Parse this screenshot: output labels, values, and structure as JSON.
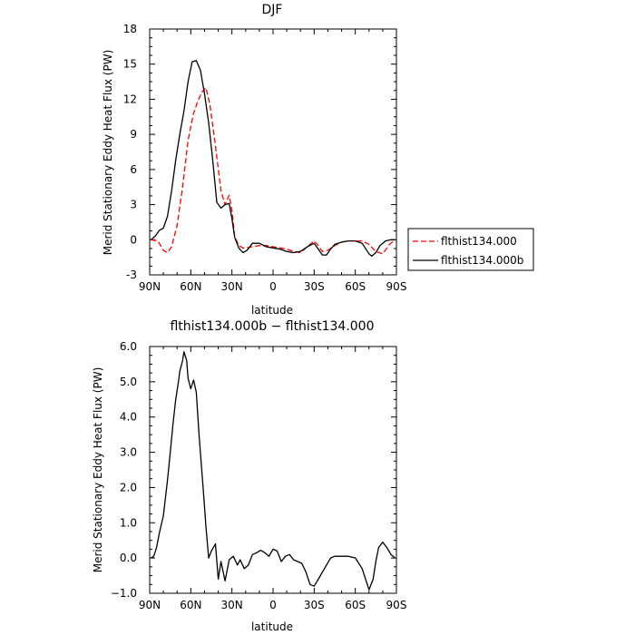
{
  "chart_data": [
    {
      "type": "line",
      "title": "DJF",
      "xlabel": "latitude",
      "ylabel": "Merid Stationary Eddy Heat Flux (PW)",
      "xlim": [
        90,
        -90
      ],
      "ylim": [
        -3,
        18
      ],
      "x_ticks": [
        90,
        60,
        30,
        0,
        -30,
        -60,
        -90
      ],
      "x_tick_labels": [
        "90N",
        "60N",
        "30N",
        "0",
        "30S",
        "60S",
        "90S"
      ],
      "y_ticks": [
        -3,
        0,
        3,
        6,
        9,
        12,
        15,
        18
      ],
      "y_tick_labels": [
        "-3",
        "0",
        "3",
        "6",
        "9",
        "12",
        "15",
        "18"
      ],
      "legend_position": "right",
      "series": [
        {
          "name": "flthist134.000",
          "color": "#ff0000",
          "dash": "dashed",
          "x": [
            89,
            84,
            80,
            77,
            74,
            70,
            66,
            62,
            58,
            55,
            52,
            49,
            46,
            42,
            38,
            35,
            32,
            30,
            28,
            25,
            22,
            20,
            15,
            10,
            5,
            0,
            -5,
            -10,
            -15,
            -20,
            -25,
            -30,
            -33,
            -36,
            -40,
            -45,
            -50,
            -55,
            -60,
            -65,
            -70,
            -75,
            -80,
            -85,
            -89
          ],
          "values": [
            0,
            -0.1,
            -0.9,
            -1.1,
            -0.6,
            1.2,
            4.5,
            8.5,
            10.8,
            11.8,
            12.6,
            13.0,
            11.5,
            8.0,
            4.2,
            3.0,
            3.8,
            2.5,
            0.3,
            -0.5,
            -0.7,
            -0.7,
            -0.6,
            -0.5,
            -0.5,
            -0.6,
            -0.7,
            -0.8,
            -1.0,
            -1.1,
            -0.6,
            -0.1,
            -0.5,
            -1.0,
            -0.9,
            -0.5,
            -0.2,
            -0.1,
            -0.1,
            -0.1,
            -0.4,
            -1.0,
            -1.2,
            -0.4,
            0
          ]
        },
        {
          "name": "flthist134.000b",
          "color": "#000000",
          "dash": "solid",
          "x": [
            89,
            86,
            83,
            80,
            77,
            74,
            71,
            68,
            65,
            62,
            59,
            56,
            53,
            50,
            47,
            44,
            41,
            38,
            35,
            32,
            30,
            28,
            25,
            22,
            19,
            15,
            10,
            5,
            0,
            -5,
            -10,
            -15,
            -20,
            -25,
            -30,
            -33,
            -36,
            -39,
            -42,
            -45,
            -50,
            -55,
            -60,
            -65,
            -70,
            -72,
            -75,
            -78,
            -82,
            -86,
            -89
          ],
          "values": [
            0,
            0.3,
            0.8,
            1.0,
            2.0,
            4.2,
            6.8,
            9.0,
            11.0,
            13.5,
            15.2,
            15.3,
            14.5,
            12.5,
            10.0,
            6.8,
            3.2,
            2.7,
            3.0,
            3.1,
            1.8,
            0.2,
            -0.7,
            -1.1,
            -0.9,
            -0.3,
            -0.3,
            -0.6,
            -0.7,
            -0.8,
            -1.0,
            -1.1,
            -1.0,
            -0.6,
            -0.3,
            -0.8,
            -1.3,
            -1.3,
            -0.8,
            -0.4,
            -0.2,
            -0.1,
            -0.1,
            -0.3,
            -1.2,
            -1.4,
            -1.1,
            -0.5,
            -0.1,
            0,
            0
          ]
        }
      ]
    },
    {
      "type": "line",
      "title": "flthist134.000b − flthist134.000",
      "xlabel": "latitude",
      "ylabel": "Merid Stationary Eddy Heat Flux (PW)",
      "xlim": [
        90,
        -90
      ],
      "ylim": [
        -1.0,
        6.0
      ],
      "x_ticks": [
        90,
        60,
        30,
        0,
        -30,
        -60,
        -90
      ],
      "x_tick_labels": [
        "90N",
        "60N",
        "30N",
        "0",
        "30S",
        "60S",
        "90S"
      ],
      "y_ticks": [
        -1,
        0,
        1,
        2,
        3,
        4,
        5,
        6
      ],
      "y_tick_labels": [
        "−1.0",
        "0.0",
        "1.0",
        "2.0",
        "3.0",
        "4.0",
        "5.0",
        "6.0"
      ],
      "series": [
        {
          "color": "#000000",
          "dash": "solid",
          "x": [
            89,
            87,
            85,
            83,
            80,
            77,
            75,
            73,
            71,
            69,
            68,
            66,
            65,
            63,
            62,
            60,
            58,
            56,
            54,
            51,
            49,
            47,
            45,
            42,
            40,
            38,
            35,
            32,
            29,
            26,
            24,
            21,
            18,
            15,
            12,
            9,
            6,
            3,
            0,
            -3,
            -6,
            -9,
            -12,
            -15,
            -18,
            -21,
            -24,
            -27,
            -30,
            -33,
            -36,
            -39,
            -42,
            -45,
            -50,
            -55,
            -60,
            -65,
            -70,
            -73,
            -75,
            -77,
            -80,
            -83,
            -86,
            -89
          ],
          "values": [
            0.0,
            0.05,
            0.3,
            0.7,
            1.2,
            2.2,
            3.0,
            3.8,
            4.5,
            5.0,
            5.3,
            5.6,
            5.85,
            5.6,
            5.1,
            4.8,
            5.05,
            4.7,
            3.5,
            2.0,
            0.9,
            0.0,
            0.2,
            0.4,
            -0.6,
            -0.1,
            -0.65,
            -0.05,
            0.05,
            -0.2,
            -0.05,
            -0.3,
            -0.2,
            0.1,
            0.15,
            0.22,
            0.15,
            0.05,
            0.25,
            0.2,
            -0.1,
            0.05,
            0.1,
            -0.05,
            -0.1,
            -0.15,
            -0.4,
            -0.75,
            -0.8,
            -0.6,
            -0.4,
            -0.2,
            0.0,
            0.05,
            0.05,
            0.05,
            0.0,
            -0.3,
            -0.9,
            -0.6,
            -0.1,
            0.3,
            0.45,
            0.3,
            0.1,
            0.0
          ]
        }
      ]
    }
  ]
}
